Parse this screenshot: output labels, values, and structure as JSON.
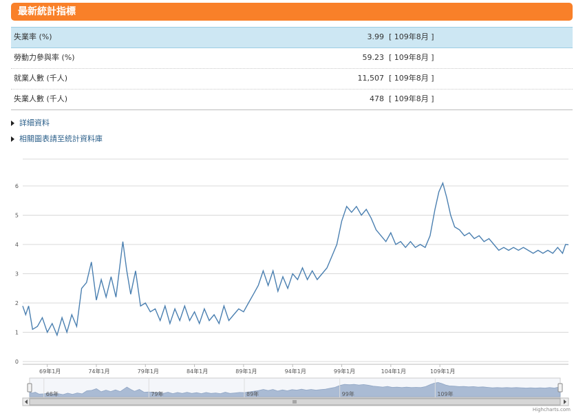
{
  "header": {
    "title": "最新統計指標"
  },
  "table": {
    "rows": [
      {
        "label": "失業率 (%)",
        "value": "3.99",
        "period": "[ 109年8月 ]"
      },
      {
        "label": "勞動力參與率 (%)",
        "value": "59.23",
        "period": "[ 109年8月 ]"
      },
      {
        "label": "就業人數 (千人)",
        "value": "11,507",
        "period": "[ 109年8月 ]"
      },
      {
        "label": "失業人數 (千人)",
        "value": "478",
        "period": "[ 109年8月 ]"
      }
    ]
  },
  "links": [
    "詳細資料",
    "相關圖表請至統計資料庫"
  ],
  "colors": {
    "header": "#f98029",
    "line": "#4a7fb0",
    "navigator_fill": "#aabbd4",
    "highlight_row": "#cde7f3"
  },
  "credit": "Highcharts.com",
  "chart_data": {
    "type": "line",
    "title": "",
    "xlabel": "",
    "ylabel": "",
    "ylim": [
      0,
      6
    ],
    "y_ticks": [
      "0",
      "1",
      "2",
      "3",
      "4",
      "5",
      "6"
    ],
    "x_ticks": [
      "69年1月",
      "74年1月",
      "79年1月",
      "84年1月",
      "89年1月",
      "94年1月",
      "99年1月",
      "104年1月",
      "109年1月"
    ],
    "navigator_ticks": [
      "68年",
      "79年",
      "89年",
      "99年",
      "109年"
    ],
    "grid": true,
    "x_range": [
      "67年1月",
      "109年8月"
    ],
    "series": [
      {
        "values": [
          {
            "x": "67.0",
            "y": 1.9
          },
          {
            "x": "67.3",
            "y": 1.6
          },
          {
            "x": "67.6",
            "y": 1.9
          },
          {
            "x": "68.0",
            "y": 1.1
          },
          {
            "x": "68.5",
            "y": 1.2
          },
          {
            "x": "69.0",
            "y": 1.5
          },
          {
            "x": "69.5",
            "y": 1.0
          },
          {
            "x": "70.0",
            "y": 1.3
          },
          {
            "x": "70.5",
            "y": 0.9
          },
          {
            "x": "71.0",
            "y": 1.5
          },
          {
            "x": "71.5",
            "y": 1.0
          },
          {
            "x": "72.0",
            "y": 1.6
          },
          {
            "x": "72.5",
            "y": 1.2
          },
          {
            "x": "73.0",
            "y": 2.5
          },
          {
            "x": "73.5",
            "y": 2.7
          },
          {
            "x": "74.0",
            "y": 3.4
          },
          {
            "x": "74.5",
            "y": 2.1
          },
          {
            "x": "75.0",
            "y": 2.8
          },
          {
            "x": "75.5",
            "y": 2.2
          },
          {
            "x": "76.0",
            "y": 2.9
          },
          {
            "x": "76.5",
            "y": 2.2
          },
          {
            "x": "77.2",
            "y": 4.1
          },
          {
            "x": "77.6",
            "y": 3.1
          },
          {
            "x": "78.0",
            "y": 2.3
          },
          {
            "x": "78.5",
            "y": 3.1
          },
          {
            "x": "79.0",
            "y": 1.9
          },
          {
            "x": "79.5",
            "y": 2.0
          },
          {
            "x": "80.0",
            "y": 1.7
          },
          {
            "x": "80.5",
            "y": 1.8
          },
          {
            "x": "81.0",
            "y": 1.4
          },
          {
            "x": "81.5",
            "y": 1.9
          },
          {
            "x": "82.0",
            "y": 1.3
          },
          {
            "x": "82.5",
            "y": 1.8
          },
          {
            "x": "83.0",
            "y": 1.4
          },
          {
            "x": "83.5",
            "y": 1.9
          },
          {
            "x": "84.0",
            "y": 1.4
          },
          {
            "x": "84.5",
            "y": 1.7
          },
          {
            "x": "85.0",
            "y": 1.3
          },
          {
            "x": "85.5",
            "y": 1.8
          },
          {
            "x": "86.0",
            "y": 1.4
          },
          {
            "x": "86.5",
            "y": 1.6
          },
          {
            "x": "87.0",
            "y": 1.3
          },
          {
            "x": "87.5",
            "y": 1.9
          },
          {
            "x": "88.0",
            "y": 1.4
          },
          {
            "x": "88.5",
            "y": 1.6
          },
          {
            "x": "89.0",
            "y": 1.8
          },
          {
            "x": "89.5",
            "y": 1.7
          },
          {
            "x": "90.0",
            "y": 2.0
          },
          {
            "x": "90.5",
            "y": 2.3
          },
          {
            "x": "91.0",
            "y": 2.6
          },
          {
            "x": "91.5",
            "y": 3.1
          },
          {
            "x": "92.0",
            "y": 2.6
          },
          {
            "x": "92.5",
            "y": 3.1
          },
          {
            "x": "93.0",
            "y": 2.4
          },
          {
            "x": "93.5",
            "y": 2.9
          },
          {
            "x": "94.0",
            "y": 2.5
          },
          {
            "x": "94.5",
            "y": 3.0
          },
          {
            "x": "95.0",
            "y": 2.8
          },
          {
            "x": "95.5",
            "y": 3.2
          },
          {
            "x": "96.0",
            "y": 2.8
          },
          {
            "x": "96.5",
            "y": 3.1
          },
          {
            "x": "97.0",
            "y": 2.8
          },
          {
            "x": "97.5",
            "y": 3.0
          },
          {
            "x": "98.0",
            "y": 3.2
          },
          {
            "x": "98.5",
            "y": 3.6
          },
          {
            "x": "99.0",
            "y": 4.0
          },
          {
            "x": "99.5",
            "y": 4.8
          },
          {
            "x": "100.0",
            "y": 5.3
          },
          {
            "x": "100.5",
            "y": 5.1
          },
          {
            "x": "101.0",
            "y": 5.3
          },
          {
            "x": "101.5",
            "y": 5.0
          },
          {
            "x": "102.0",
            "y": 5.2
          },
          {
            "x": "102.5",
            "y": 4.9
          },
          {
            "x": "103.0",
            "y": 4.5
          },
          {
            "x": "103.5",
            "y": 4.3
          },
          {
            "x": "104.0",
            "y": 4.1
          },
          {
            "x": "104.5",
            "y": 4.4
          },
          {
            "x": "105.0",
            "y": 4.0
          },
          {
            "x": "105.5",
            "y": 4.1
          },
          {
            "x": "106.0",
            "y": 3.9
          },
          {
            "x": "106.5",
            "y": 4.1
          },
          {
            "x": "107.0",
            "y": 3.9
          },
          {
            "x": "107.5",
            "y": 4.0
          },
          {
            "x": "108.0",
            "y": 3.9
          },
          {
            "x": "108.5",
            "y": 4.3
          },
          {
            "x": "109.0",
            "y": 5.2
          },
          {
            "x": "109.4",
            "y": 5.8
          },
          {
            "x": "109.8",
            "y": 6.1
          },
          {
            "x": "110.2",
            "y": 5.6
          },
          {
            "x": "110.6",
            "y": 5.0
          },
          {
            "x": "111.0",
            "y": 4.6
          },
          {
            "x": "111.5",
            "y": 4.5
          },
          {
            "x": "112.0",
            "y": 4.3
          },
          {
            "x": "112.5",
            "y": 4.4
          },
          {
            "x": "113.0",
            "y": 4.2
          },
          {
            "x": "113.5",
            "y": 4.3
          },
          {
            "x": "114.0",
            "y": 4.1
          },
          {
            "x": "114.5",
            "y": 4.2
          },
          {
            "x": "115.0",
            "y": 4.0
          },
          {
            "x": "115.5",
            "y": 3.8
          },
          {
            "x": "116.0",
            "y": 3.9
          },
          {
            "x": "116.5",
            "y": 3.8
          },
          {
            "x": "117.0",
            "y": 3.9
          },
          {
            "x": "117.5",
            "y": 3.8
          },
          {
            "x": "118.0",
            "y": 3.9
          },
          {
            "x": "118.5",
            "y": 3.8
          },
          {
            "x": "119.0",
            "y": 3.7
          },
          {
            "x": "119.5",
            "y": 3.8
          },
          {
            "x": "120.0",
            "y": 3.7
          },
          {
            "x": "120.5",
            "y": 3.8
          },
          {
            "x": "121.0",
            "y": 3.7
          },
          {
            "x": "121.5",
            "y": 3.9
          },
          {
            "x": "122.0",
            "y": 3.7
          },
          {
            "x": "122.3",
            "y": 4.0
          },
          {
            "x": "122.6",
            "y": 3.99
          }
        ]
      }
    ]
  }
}
